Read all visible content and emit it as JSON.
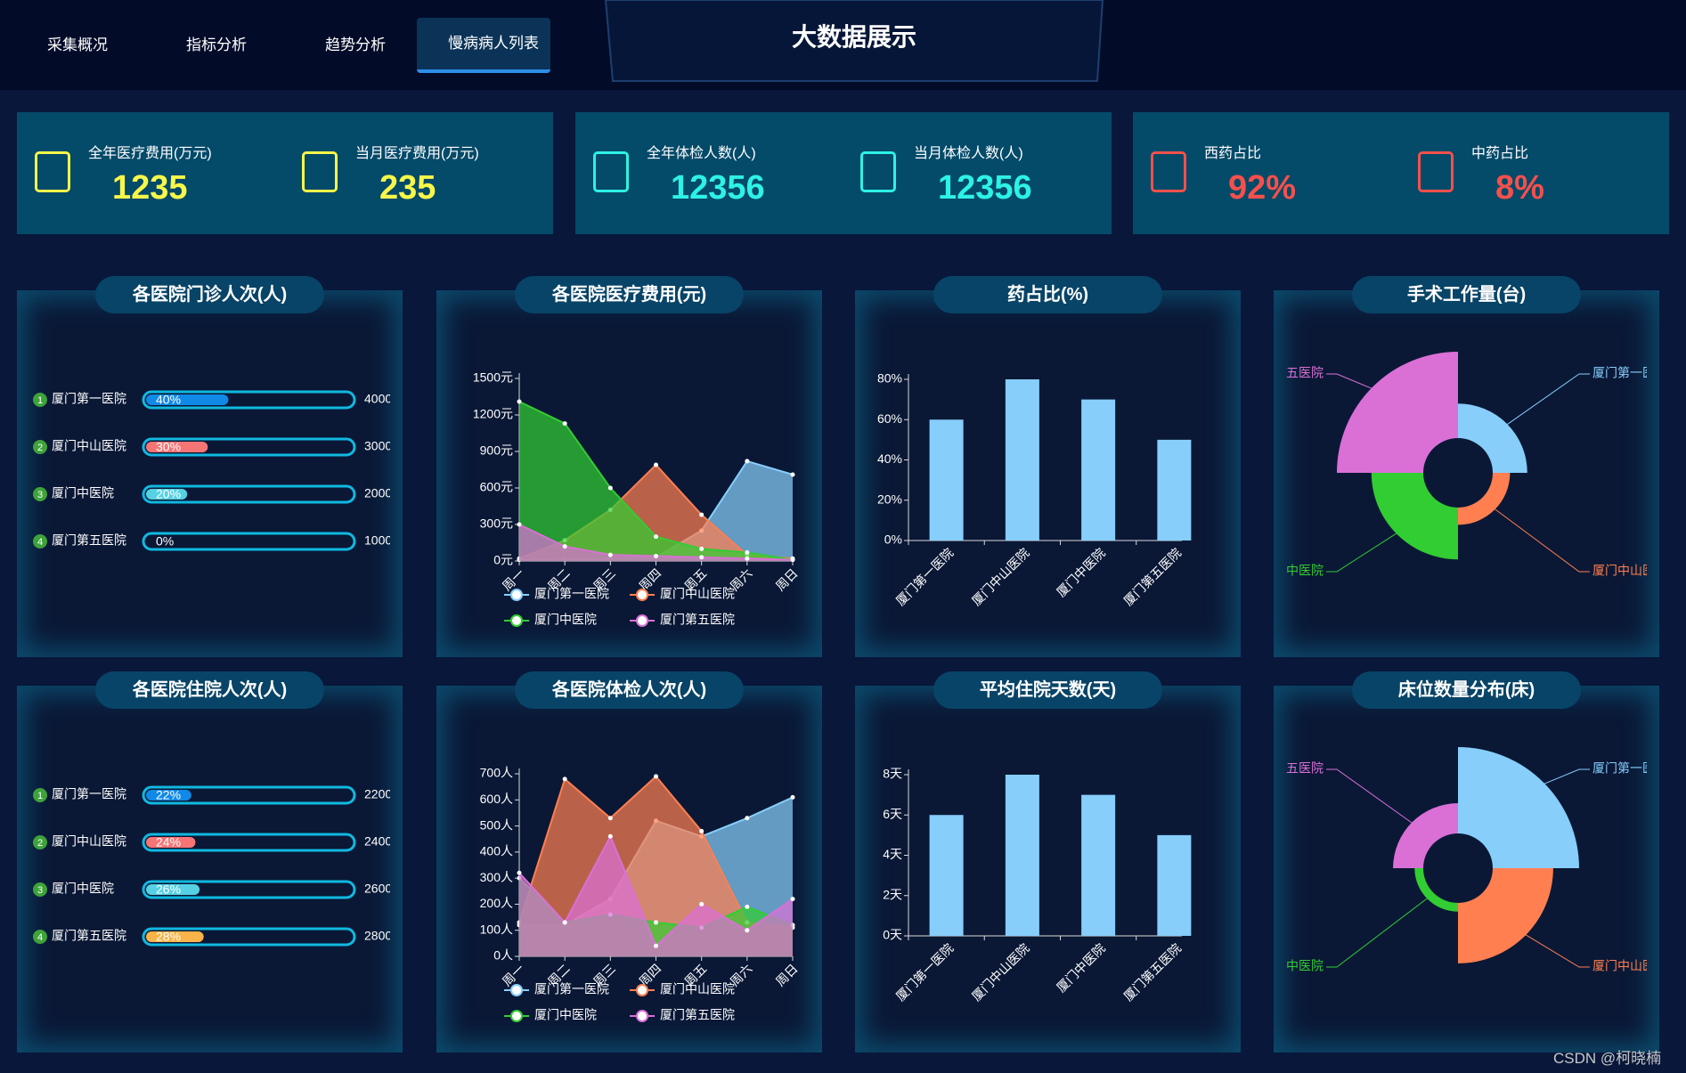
{
  "nav": {
    "tabs": [
      "采集概况",
      "指标分析",
      "趋势分析",
      "慢病病人列表"
    ],
    "active": 3
  },
  "title": "大数据展示",
  "cards": [
    {
      "color": "#f7f74a",
      "items": [
        {
          "label": "全年医疗费用(万元)",
          "value": "1235"
        },
        {
          "label": "当月医疗费用(万元)",
          "value": "235"
        }
      ]
    },
    {
      "color": "#2df2e6",
      "items": [
        {
          "label": "全年体检人数(人)",
          "value": "12356"
        },
        {
          "label": "当月体检人数(人)",
          "value": "12356"
        }
      ]
    },
    {
      "color": "#f5504c",
      "items": [
        {
          "label": "西药占比",
          "value": "92%"
        },
        {
          "label": "中药占比",
          "value": "8%"
        }
      ]
    }
  ],
  "chart_data": [
    {
      "type": "progress",
      "title": "各医院门诊人次(人)",
      "categories": [
        "厦门第一医院",
        "厦门中山医院",
        "厦门中医院",
        "厦门第五医院"
      ],
      "ranks": [
        1,
        2,
        3,
        4
      ],
      "values": [
        40,
        30,
        20,
        0
      ],
      "value_labels": [
        "40%",
        "30%",
        "20%",
        "0%"
      ],
      "totals": [
        4000,
        3000,
        2000,
        1000
      ],
      "colors": [
        "#1089e7",
        "#f57474",
        "#56d0e3",
        "#f8b448"
      ],
      "rank_color": "#3ea33a",
      "track_color": "#10b9e0",
      "xlim": [
        0,
        100
      ]
    },
    {
      "type": "line",
      "title": "各医院医疗费用(元)",
      "area": true,
      "categories": [
        "周一",
        "周二",
        "周三",
        "周四",
        "周五",
        "周六",
        "周日"
      ],
      "ylim": [
        0,
        1500
      ],
      "yticks": [
        {
          "value": 0,
          "label": "0元"
        },
        {
          "value": 300,
          "label": "300元"
        },
        {
          "value": 600,
          "label": "600元"
        },
        {
          "value": 900,
          "label": "900元"
        },
        {
          "value": 1200,
          "label": "1200元"
        },
        {
          "value": 1500,
          "label": "1500元"
        }
      ],
      "series": [
        {
          "name": "厦门第一医院",
          "color": "#87cefa",
          "values": [
            10,
            15,
            20,
            30,
            250,
            820,
            710
          ]
        },
        {
          "name": "厦门中山医院",
          "color": "#ff7f50",
          "values": [
            20,
            170,
            420,
            790,
            380,
            50,
            20
          ]
        },
        {
          "name": "厦门中医院",
          "color": "#32cd32",
          "values": [
            1310,
            1130,
            600,
            200,
            100,
            70,
            10
          ]
        },
        {
          "name": "厦门第五医院",
          "color": "#da70d6",
          "values": [
            300,
            120,
            50,
            40,
            30,
            20,
            10
          ]
        }
      ]
    },
    {
      "type": "bar",
      "title": "药占比(%)",
      "categories": [
        "厦门第一医院",
        "厦门中山医院",
        "厦门中医院",
        "厦门第五医院"
      ],
      "values": [
        60,
        80,
        70,
        50
      ],
      "color": "#87cefa",
      "ylim": [
        0,
        80
      ],
      "yticks": [
        {
          "value": 0,
          "label": "0%"
        },
        {
          "value": 20,
          "label": "20%"
        },
        {
          "value": 40,
          "label": "40%"
        },
        {
          "value": 60,
          "label": "60%"
        },
        {
          "value": 80,
          "label": "80%"
        }
      ]
    },
    {
      "type": "rose",
      "title": "手术工作量(台)",
      "categories": [
        "厦门第一医院",
        "厦门中山医院",
        "厦门中医院",
        "厦门第五医院"
      ],
      "values": [
        40,
        20,
        60,
        100
      ],
      "colors": [
        "#87cefa",
        "#ff7f50",
        "#32cd32",
        "#da70d6"
      ]
    },
    {
      "type": "progress",
      "title": "各医院住院人次(人)",
      "categories": [
        "厦门第一医院",
        "厦门中山医院",
        "厦门中医院",
        "厦门第五医院"
      ],
      "ranks": [
        1,
        2,
        3,
        4
      ],
      "values": [
        22,
        24,
        26,
        28
      ],
      "value_labels": [
        "22%",
        "24%",
        "26%",
        "28%"
      ],
      "totals": [
        2200,
        2400,
        2600,
        2800
      ],
      "colors": [
        "#1089e7",
        "#f57474",
        "#56d0e3",
        "#f8b448"
      ],
      "rank_color": "#3ea33a",
      "track_color": "#10b9e0",
      "xlim": [
        0,
        100
      ]
    },
    {
      "type": "line",
      "title": "各医院体检人次(人)",
      "area": true,
      "categories": [
        "周一",
        "周二",
        "周三",
        "周四",
        "周五",
        "周六",
        "周日"
      ],
      "ylim": [
        0,
        700
      ],
      "yticks": [
        {
          "value": 0,
          "label": "0人"
        },
        {
          "value": 100,
          "label": "100人"
        },
        {
          "value": 200,
          "label": "200人"
        },
        {
          "value": 300,
          "label": "300人"
        },
        {
          "value": 400,
          "label": "400人"
        },
        {
          "value": 500,
          "label": "500人"
        },
        {
          "value": 600,
          "label": "600人"
        },
        {
          "value": 700,
          "label": "700人"
        }
      ],
      "series": [
        {
          "name": "厦门第一医院",
          "color": "#87cefa",
          "values": [
            120,
            120,
            220,
            520,
            460,
            530,
            610
          ]
        },
        {
          "name": "厦门中山医院",
          "color": "#ff7f50",
          "values": [
            130,
            680,
            530,
            690,
            480,
            130,
            110
          ]
        },
        {
          "name": "厦门中医院",
          "color": "#32cd32",
          "values": [
            300,
            130,
            160,
            130,
            110,
            190,
            120
          ]
        },
        {
          "name": "厦门第五医院",
          "color": "#da70d6",
          "values": [
            320,
            130,
            460,
            40,
            200,
            100,
            220
          ]
        }
      ]
    },
    {
      "type": "bar",
      "title": "平均住院天数(天)",
      "categories": [
        "厦门第一医院",
        "厦门中山医院",
        "厦门中医院",
        "厦门第五医院"
      ],
      "values": [
        6,
        8,
        7,
        5
      ],
      "color": "#87cefa",
      "ylim": [
        0,
        8
      ],
      "yticks": [
        {
          "value": 0,
          "label": "0天"
        },
        {
          "value": 2,
          "label": "2天"
        },
        {
          "value": 4,
          "label": "4天"
        },
        {
          "value": 6,
          "label": "6天"
        },
        {
          "value": 8,
          "label": "8天"
        }
      ]
    },
    {
      "type": "rose",
      "title": "床位数量分布(床)",
      "categories": [
        "厦门第一医院",
        "厦门中山医院",
        "厦门中医院",
        "厦门第五医院"
      ],
      "values": [
        100,
        70,
        10,
        35
      ],
      "colors": [
        "#87cefa",
        "#ff7f50",
        "#32cd32",
        "#da70d6"
      ]
    }
  ],
  "watermark": "CSDN @柯晓楠"
}
